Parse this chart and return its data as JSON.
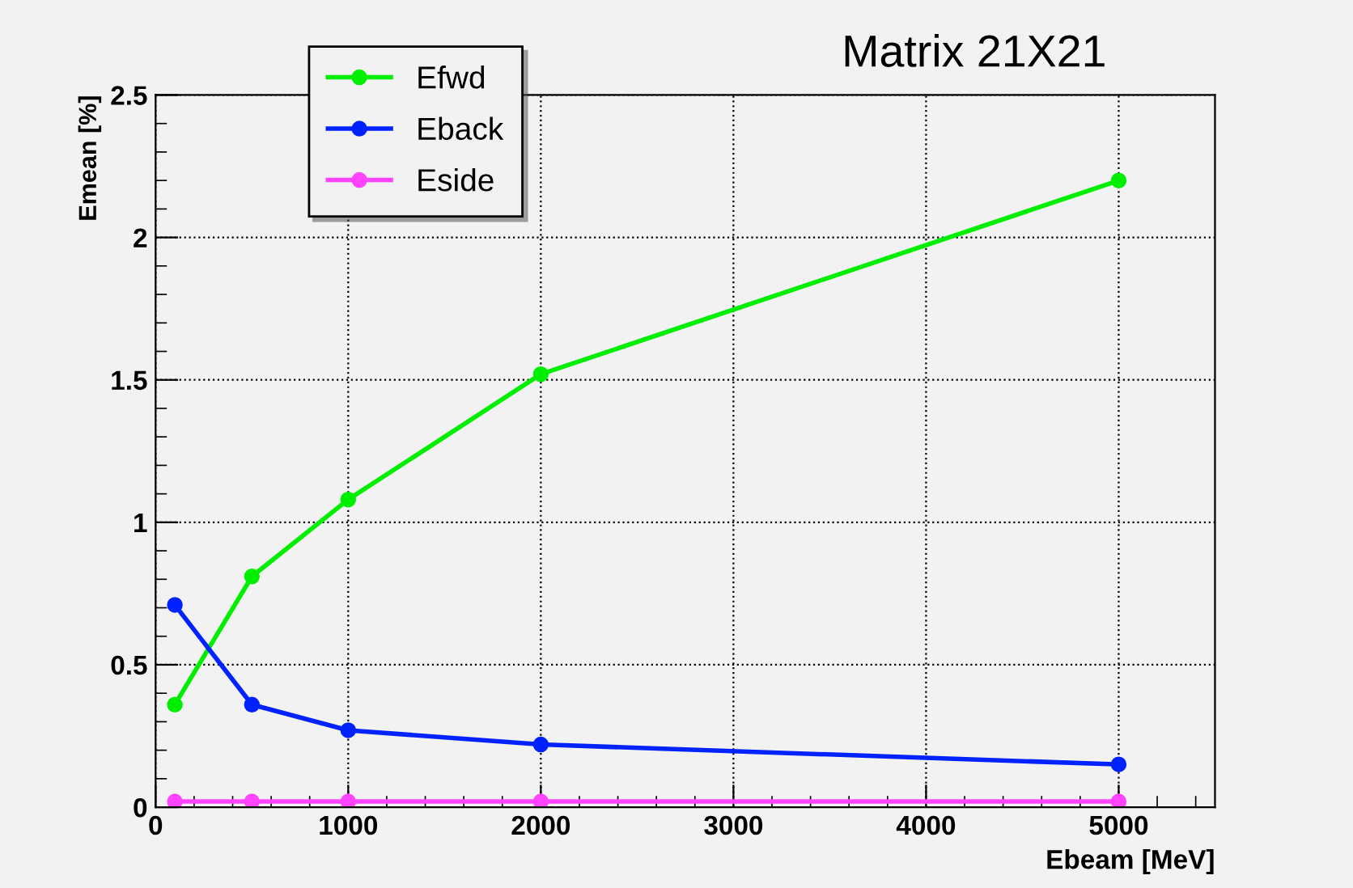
{
  "chart_data": {
    "type": "line",
    "title": "Matrix 21X21",
    "xlabel": "Ebeam [MeV]",
    "ylabel": "Emean [%]",
    "x": [
      100,
      500,
      1000,
      2000,
      5000
    ],
    "series": [
      {
        "name": "Efwd",
        "color": "#00ee00",
        "values": [
          0.36,
          0.81,
          1.08,
          1.52,
          2.2
        ]
      },
      {
        "name": "Eback",
        "color": "#0022ff",
        "values": [
          0.71,
          0.36,
          0.27,
          0.22,
          0.15
        ]
      },
      {
        "name": "Eside",
        "color": "#ff44ff",
        "values": [
          0.02,
          0.02,
          0.02,
          0.02,
          0.02
        ]
      }
    ],
    "xlim": [
      0,
      5500
    ],
    "ylim": [
      0,
      2.5
    ],
    "xticks": [
      0,
      1000,
      2000,
      3000,
      4000,
      5000
    ],
    "yticks": [
      0,
      0.5,
      1,
      1.5,
      2,
      2.5
    ],
    "grid": true,
    "legend": "top left",
    "marker": "circle",
    "line_style": "solid"
  }
}
